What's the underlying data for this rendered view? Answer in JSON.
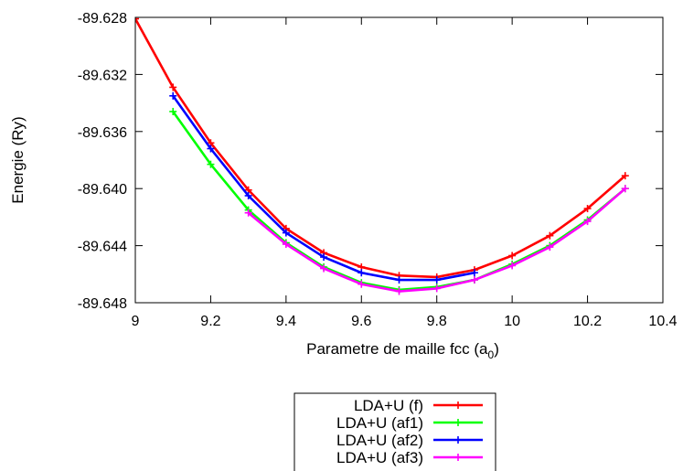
{
  "chart_data": {
    "type": "line",
    "title": "",
    "xlabel": "Parametre de maille fcc (a",
    "xlabel_subscript": "0",
    "xlabel_suffix": ")",
    "ylabel": "Energie (Ry)",
    "xlim": [
      9,
      10.4
    ],
    "ylim": [
      -89.648,
      -89.628
    ],
    "x_ticks": [
      9,
      9.2,
      9.4,
      9.6,
      9.8,
      10,
      10.2,
      10.4
    ],
    "x_tick_labels": [
      "9",
      "9.2",
      "9.4",
      "9.6",
      "9.8",
      "10",
      "10.2",
      "10.4"
    ],
    "y_ticks": [
      -89.628,
      -89.632,
      -89.636,
      -89.64,
      -89.644,
      -89.648
    ],
    "y_tick_labels": [
      "-89.628",
      "-89.632",
      "-89.636",
      "-89.640",
      "-89.644",
      "-89.648"
    ],
    "grid": false,
    "legend_position": "bottom-center, below plot",
    "series": [
      {
        "name": "LDA+U (f)",
        "color": "#ff0000",
        "x": [
          9.0,
          9.1,
          9.2,
          9.3,
          9.4,
          9.5,
          9.6,
          9.7,
          9.8,
          9.9,
          10.0,
          10.1,
          10.2,
          10.3
        ],
        "y": [
          -89.6281,
          -89.6329,
          -89.6368,
          -89.6401,
          -89.6428,
          -89.6445,
          -89.6455,
          -89.6461,
          -89.6462,
          -89.6457,
          -89.6447,
          -89.6433,
          -89.6414,
          -89.6391
        ]
      },
      {
        "name": "LDA+U (af1)",
        "color": "#00ff00",
        "x": [
          9.1,
          9.2,
          9.3,
          9.4,
          9.5,
          9.6,
          9.7,
          9.8,
          9.9,
          10.0,
          10.1,
          10.2,
          10.3
        ],
        "y": [
          -89.6346,
          -89.6383,
          -89.6415,
          -89.6438,
          -89.6455,
          -89.6466,
          -89.6471,
          -89.6469,
          -89.6464,
          -89.6453,
          -89.644,
          -89.6422,
          -89.64
        ]
      },
      {
        "name": "LDA+U (af2)",
        "color": "#0000ff",
        "x": [
          9.1,
          9.2,
          9.3,
          9.4,
          9.5,
          9.6,
          9.7,
          9.8,
          9.9
        ],
        "y": [
          -89.6335,
          -89.6372,
          -89.6405,
          -89.6431,
          -89.6448,
          -89.6459,
          -89.6464,
          -89.6464,
          -89.6459
        ]
      },
      {
        "name": "LDA+U (af3)",
        "color": "#ff00ff",
        "x": [
          9.3,
          9.4,
          9.5,
          9.6,
          9.7,
          9.8,
          9.9,
          10.0,
          10.1,
          10.2,
          10.3
        ],
        "y": [
          -89.6417,
          -89.6439,
          -89.6456,
          -89.6467,
          -89.6472,
          -89.647,
          -89.6464,
          -89.6454,
          -89.6441,
          -89.6423,
          -89.64
        ]
      }
    ]
  }
}
